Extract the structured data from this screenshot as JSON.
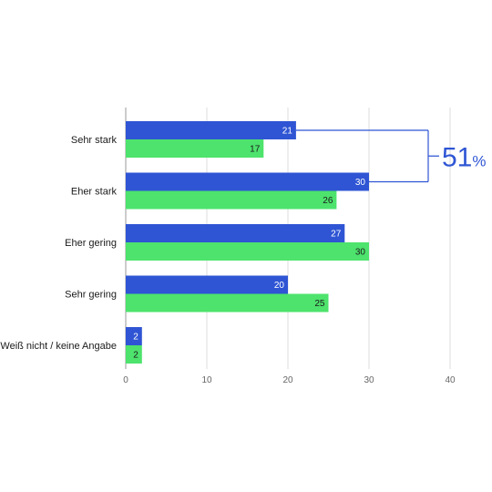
{
  "chart_data": {
    "type": "bar",
    "orientation": "horizontal",
    "categories": [
      "Sehr stark",
      "Eher stark",
      "Eher gering",
      "Sehr gering",
      "Weiß nicht / keine Angabe"
    ],
    "series": [
      {
        "values": [
          21,
          30,
          27,
          20,
          2
        ],
        "color": "#2f55d4",
        "label_color": "#ffffff"
      },
      {
        "values": [
          17,
          26,
          30,
          25,
          2
        ],
        "color": "#4de36d",
        "label_color": "#1a1a1a"
      }
    ],
    "x_ticks": [
      "0",
      "10",
      "20",
      "30",
      "40"
    ],
    "xlim": [
      0,
      40
    ],
    "grid": true,
    "annotation": {
      "text": "51",
      "suffix": "%",
      "brackets_series": 0,
      "brackets_categories": [
        0,
        1
      ],
      "color": "#2f55d4"
    }
  }
}
